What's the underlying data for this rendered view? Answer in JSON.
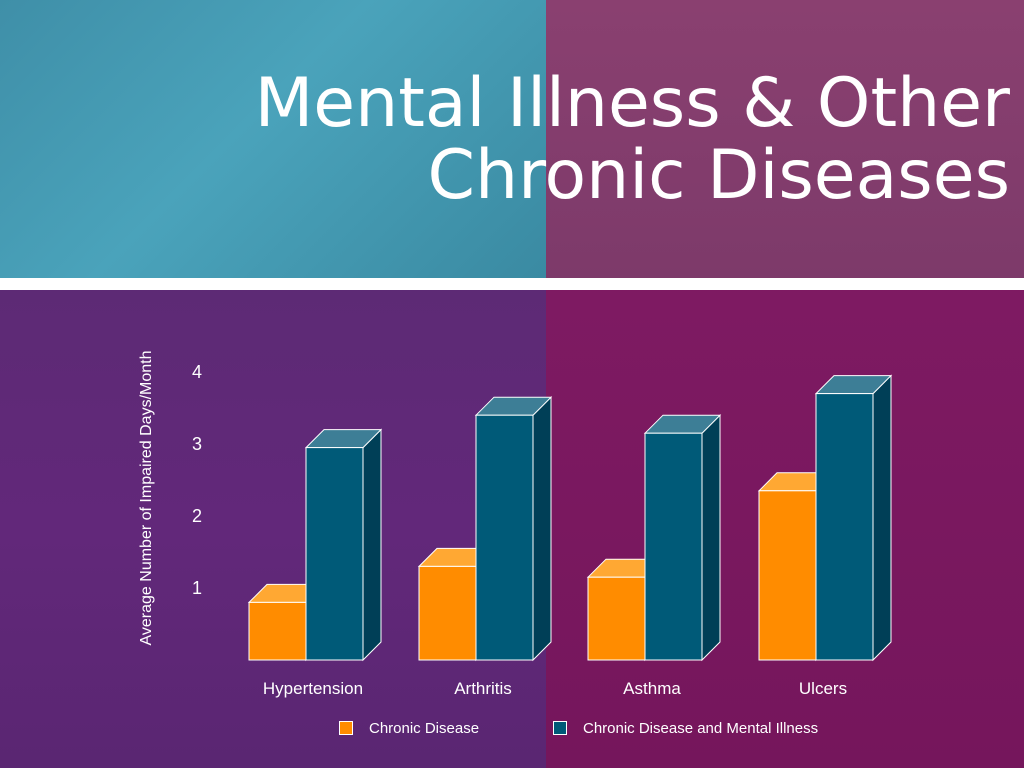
{
  "slide": {
    "title_line_1": "Mental Illness & Other",
    "title_line_2": "Chronic Diseases"
  },
  "colors": {
    "orange_front": "#ff8c00",
    "orange_top": "#ffa833",
    "orange_side": "#c86c00",
    "teal_front": "#005a78",
    "teal_top": "#3d7e96",
    "teal_side": "#003f57"
  },
  "chart_data": {
    "type": "bar",
    "title": "",
    "ylabel": "Average Number of Impaired Days/Month",
    "xlabel": "",
    "categories": [
      "Hypertension",
      "Arthritis",
      "Asthma",
      "Ulcers"
    ],
    "yticks": [
      "1",
      "2",
      "3",
      "4"
    ],
    "ylim": [
      0,
      4
    ],
    "series": [
      {
        "name": "Chronic Disease",
        "values": [
          0.8,
          1.3,
          1.15,
          2.35
        ]
      },
      {
        "name": "Chronic Disease and Mental Illness",
        "values": [
          2.95,
          3.4,
          3.15,
          3.7
        ]
      }
    ],
    "legend": "bottom",
    "grid": false,
    "style": "3d-bars"
  }
}
